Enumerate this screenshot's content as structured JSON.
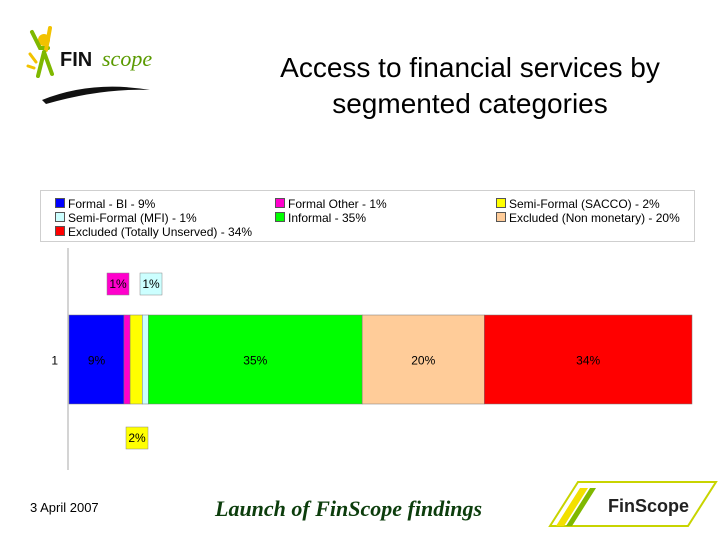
{
  "header": {
    "logo_text_fin": "FIN",
    "logo_text_scope": "scope",
    "title_line1": "Access to financial services by",
    "title_line2": "segmented categories"
  },
  "legend": [
    {
      "label": "Formal - BI - 9%",
      "color": "#0000ff"
    },
    {
      "label": "Formal Other - 1%",
      "color": "#ff00cc"
    },
    {
      "label": "Semi-Formal (SACCO) - 2%",
      "color": "#ffff00"
    },
    {
      "label": "Semi-Formal (MFI) - 1%",
      "color": "#ccffff"
    },
    {
      "label": "Informal - 35%",
      "color": "#00ff00"
    },
    {
      "label": "Excluded (Non monetary) - 20%",
      "color": "#ffcc99"
    },
    {
      "label": "Excluded (Totally Unserved) - 34%",
      "color": "#ff0000"
    }
  ],
  "chart_data": {
    "type": "bar",
    "orientation": "horizontal",
    "stacked": true,
    "categories": [
      "1"
    ],
    "series": [
      {
        "name": "Formal - BI - 9%",
        "values": [
          9
        ],
        "color": "#0000ff",
        "label": "9%",
        "label_position": "inside"
      },
      {
        "name": "Formal Other - 1%",
        "values": [
          1
        ],
        "color": "#ff00cc",
        "label": "1%",
        "label_position": "above"
      },
      {
        "name": "Semi-Formal (SACCO) - 2%",
        "values": [
          2
        ],
        "color": "#ffff00",
        "label": "2%",
        "label_position": "below"
      },
      {
        "name": "Semi-Formal (MFI) - 1%",
        "values": [
          1
        ],
        "color": "#ccffff",
        "label": "1%",
        "label_position": "above"
      },
      {
        "name": "Informal - 35%",
        "values": [
          35
        ],
        "color": "#00ff00",
        "label": "35%",
        "label_position": "inside"
      },
      {
        "name": "Excluded (Non monetary) - 20%",
        "values": [
          20
        ],
        "color": "#ffcc99",
        "label": "20%",
        "label_position": "inside"
      },
      {
        "name": "Excluded (Totally Unserved) - 34%",
        "values": [
          34
        ],
        "color": "#ff0000",
        "label": "34%",
        "label_position": "inside"
      }
    ],
    "xlim": [
      0,
      102
    ],
    "legend_position": "top",
    "grid": false
  },
  "footer": {
    "date": "3 April 2007",
    "launch_text": "Launch of FinScope findings",
    "logo_text": "FinScope"
  }
}
